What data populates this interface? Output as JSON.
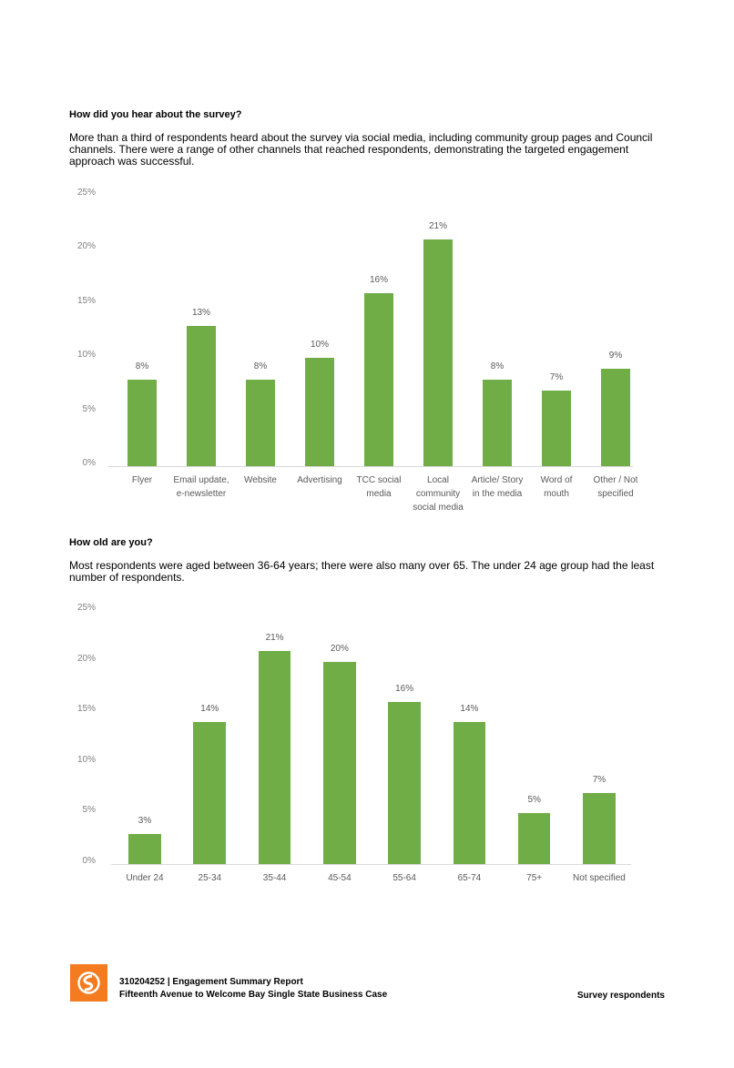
{
  "sections": [
    {
      "heading": "How did you hear about the survey?",
      "text": "More than a third of respondents heard about the survey via social media, including community group pages and Council channels. There were a range of other channels that reached respondents, demonstrating the targeted engagement approach was successful."
    },
    {
      "heading": "How old are you?",
      "text": "Most respondents were aged between 36-64 years; there were also many over 65. The under 24 age group had the least number of respondents."
    }
  ],
  "chart_data": [
    {
      "type": "bar",
      "color": "#70ad47",
      "categories": [
        "Flyer",
        "Email update, e-newsletter",
        "Website",
        "Advertising",
        "TCC social media",
        "Local community social media",
        "Article/ Story in the media",
        "Word of mouth",
        "Other / Not specified"
      ],
      "values": [
        8,
        13,
        8,
        10,
        16,
        21,
        8,
        7,
        9
      ],
      "value_labels": [
        "8%",
        "13%",
        "8%",
        "10%",
        "16%",
        "21%",
        "8%",
        "7%",
        "9%"
      ],
      "ylim": [
        0,
        25
      ],
      "yticks": [
        {
          "value": 0,
          "label": "0%"
        },
        {
          "value": 5,
          "label": "5%"
        },
        {
          "value": 10,
          "label": "10%"
        },
        {
          "value": 15,
          "label": "15%"
        },
        {
          "value": 20,
          "label": "20%"
        },
        {
          "value": 25,
          "label": "25%"
        }
      ],
      "grid": false
    },
    {
      "type": "bar",
      "color": "#70ad47",
      "categories": [
        "Under 24",
        "25-34",
        "35-44",
        "45-54",
        "55-64",
        "65-74",
        "75+",
        "Not specified"
      ],
      "values": [
        3,
        14,
        21,
        20,
        16,
        14,
        5,
        7
      ],
      "value_labels": [
        "3%",
        "14%",
        "21%",
        "20%",
        "16%",
        "14%",
        "5%",
        "7%"
      ],
      "ylim": [
        0,
        25
      ],
      "yticks": [
        {
          "value": 0,
          "label": "0%"
        },
        {
          "value": 5,
          "label": "5%"
        },
        {
          "value": 10,
          "label": "10%"
        },
        {
          "value": 15,
          "label": "15%"
        },
        {
          "value": 20,
          "label": "20%"
        },
        {
          "value": 25,
          "label": "25%"
        }
      ],
      "grid": false
    }
  ],
  "footer": {
    "report": "310204252 | Engagement Summary Report",
    "project": "Fifteenth Avenue to Welcome Bay Single State Business Case",
    "section": "Survey respondents"
  }
}
